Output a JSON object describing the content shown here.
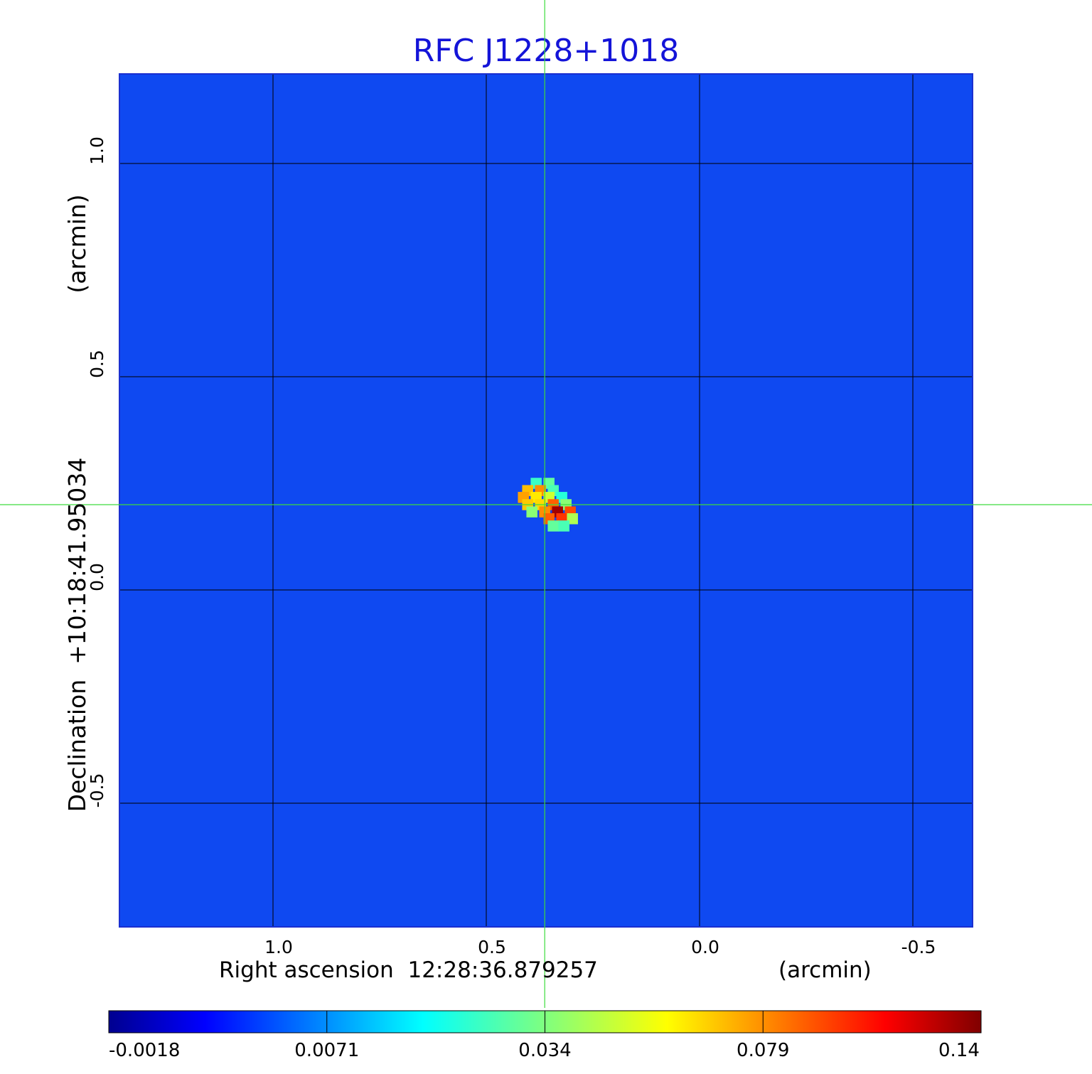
{
  "chart_data": {
    "type": "heatmap",
    "title": "RFC J1228+1018",
    "xlabel": "Right ascension  12:28:36.879257",
    "xunit": "(arcmin)",
    "ylabel": "Declination  +10:18:41.95034",
    "yunit": "(arcmin)",
    "xlim": [
      1.36,
      -0.64
    ],
    "ylim": [
      -0.79,
      1.21
    ],
    "xticks": [
      1.0,
      0.5,
      0.0,
      -0.5
    ],
    "xtick_labels": [
      "1.0",
      "0.5",
      "0.0",
      "-0.5"
    ],
    "yticks": [
      1.0,
      0.5,
      0.0,
      -0.5
    ],
    "ytick_labels": [
      "1.0",
      "0.5",
      "0.0",
      "-0.5"
    ],
    "grid": true,
    "crosshair": {
      "x": 0.363,
      "y": 0.2
    },
    "colorbar": {
      "ticks": [
        "-0.0018",
        "0.0071",
        "0.034",
        "0.079",
        "0.14"
      ],
      "colormap": "jet"
    },
    "background_level": -0.0005,
    "source_pixels": [
      {
        "x": 0.383,
        "y": 0.25,
        "v": 0.02
      },
      {
        "x": 0.353,
        "y": 0.25,
        "v": 0.025
      },
      {
        "x": 0.403,
        "y": 0.233,
        "v": 0.06
      },
      {
        "x": 0.373,
        "y": 0.233,
        "v": 0.07
      },
      {
        "x": 0.343,
        "y": 0.233,
        "v": 0.022
      },
      {
        "x": 0.413,
        "y": 0.217,
        "v": 0.066
      },
      {
        "x": 0.383,
        "y": 0.217,
        "v": 0.052
      },
      {
        "x": 0.353,
        "y": 0.217,
        "v": 0.04
      },
      {
        "x": 0.323,
        "y": 0.217,
        "v": 0.018
      },
      {
        "x": 0.403,
        "y": 0.2,
        "v": 0.058
      },
      {
        "x": 0.373,
        "y": 0.2,
        "v": 0.055
      },
      {
        "x": 0.343,
        "y": 0.2,
        "v": 0.08
      },
      {
        "x": 0.313,
        "y": 0.2,
        "v": 0.03
      },
      {
        "x": 0.393,
        "y": 0.183,
        "v": 0.03
      },
      {
        "x": 0.363,
        "y": 0.183,
        "v": 0.07
      },
      {
        "x": 0.333,
        "y": 0.183,
        "v": 0.13
      },
      {
        "x": 0.303,
        "y": 0.183,
        "v": 0.085
      },
      {
        "x": 0.353,
        "y": 0.167,
        "v": 0.08
      },
      {
        "x": 0.323,
        "y": 0.167,
        "v": 0.09
      },
      {
        "x": 0.298,
        "y": 0.167,
        "v": 0.035
      },
      {
        "x": 0.343,
        "y": 0.15,
        "v": 0.025
      },
      {
        "x": 0.318,
        "y": 0.15,
        "v": 0.022
      }
    ]
  }
}
